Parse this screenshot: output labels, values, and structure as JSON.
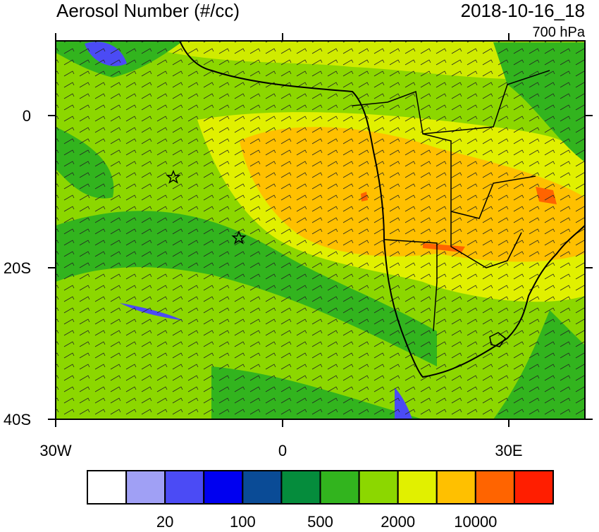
{
  "title": "Aerosol Number (#/cc)",
  "datetime": "2018-10-16_18",
  "level": "700 hPa",
  "lat_labels": [
    "0",
    "20S",
    "40S"
  ],
  "lon_labels": [
    "30W",
    "0",
    "30E"
  ],
  "colorbar": {
    "colors": [
      "#ffffff",
      "#a0a0f5",
      "#4b4bf5",
      "#0000f0",
      "#0a4b96",
      "#058c3c",
      "#32b41e",
      "#8cd700",
      "#e1f000",
      "#ffc000",
      "#ff6400",
      "#ff1e00"
    ],
    "labels": [
      "20",
      "100",
      "500",
      "2000",
      "10000"
    ]
  }
}
